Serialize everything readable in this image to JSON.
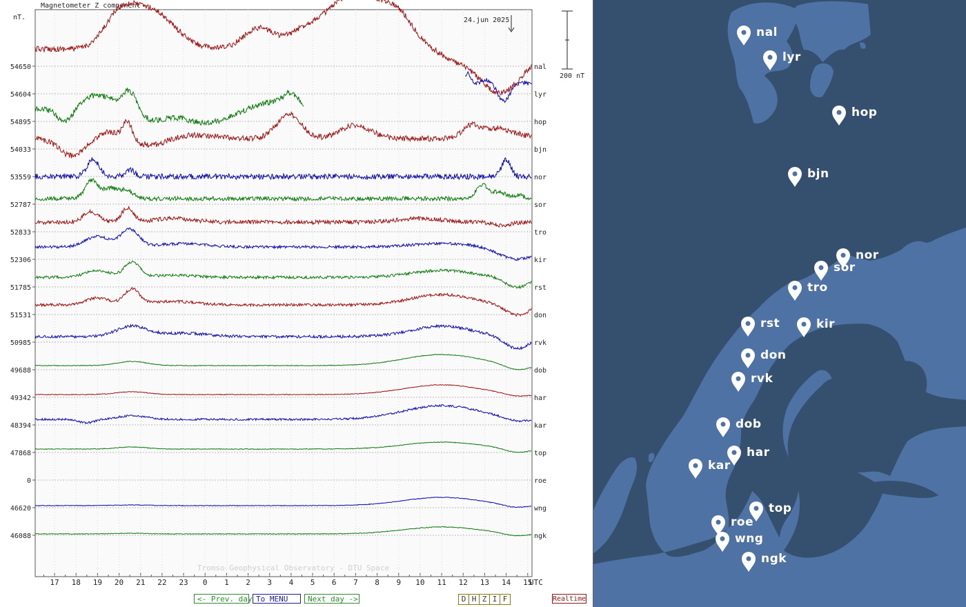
{
  "chart_data": {
    "type": "line",
    "title": "Magnetometer Z component",
    "unit": "nT.",
    "date": "24.jun 2025",
    "scale_label": "200 nT",
    "x_ticks": [
      "17",
      "18",
      "19",
      "20",
      "21",
      "22",
      "23",
      "0",
      "1",
      "2",
      "3",
      "4",
      "5",
      "6",
      "7",
      "8",
      "9",
      "10",
      "11",
      "12",
      "13",
      "14",
      "15"
    ],
    "x_unit": "UTC",
    "watermark": "Tromso Geophysical Observatory - DTU Space",
    "series": [
      {
        "name": "nal",
        "baseline": "54650",
        "color": "#a01010"
      },
      {
        "name": "lyr",
        "baseline": "54604",
        "color": "#0a0ab0"
      },
      {
        "name": "hop",
        "baseline": "54895",
        "color": "#0a7a0a"
      },
      {
        "name": "bjn",
        "baseline": "54033",
        "color": "#a01010"
      },
      {
        "name": "nor",
        "baseline": "53559",
        "color": "#0a0ab0"
      },
      {
        "name": "sor",
        "baseline": "52787",
        "color": "#0a7a0a"
      },
      {
        "name": "tro",
        "baseline": "52833",
        "color": "#a01010"
      },
      {
        "name": "kir",
        "baseline": "52306",
        "color": "#0a0ab0"
      },
      {
        "name": "rst",
        "baseline": "51785",
        "color": "#0a7a0a"
      },
      {
        "name": "don",
        "baseline": "51531",
        "color": "#a01010"
      },
      {
        "name": "rvk",
        "baseline": "50985",
        "color": "#0a0ab0"
      },
      {
        "name": "dob",
        "baseline": "49688",
        "color": "#0a7a0a"
      },
      {
        "name": "har",
        "baseline": "49342",
        "color": "#a01010"
      },
      {
        "name": "kar",
        "baseline": "48394",
        "color": "#0a0ab0"
      },
      {
        "name": "top",
        "baseline": "47868",
        "color": "#0a7a0a"
      },
      {
        "name": "roe",
        "baseline": "0",
        "color": "#a01010"
      },
      {
        "name": "wng",
        "baseline": "46620",
        "color": "#0a0ab0"
      },
      {
        "name": "ngk",
        "baseline": "46088",
        "color": "#0a7a0a"
      }
    ]
  },
  "nav": {
    "prev": "<- Prev. day",
    "menu": "To MENU",
    "next": "Next day ->",
    "components": [
      "D",
      "H",
      "Z",
      "I",
      "F"
    ],
    "realtime": "Realtime"
  },
  "map": {
    "background": "#35506f",
    "land": "#4e72a3",
    "stations": [
      "nal",
      "lyr",
      "hop",
      "bjn",
      "nor",
      "sor",
      "tro",
      "rst",
      "kir",
      "don",
      "rvk",
      "dob",
      "har",
      "kar",
      "top",
      "roe",
      "wng",
      "ngk"
    ]
  }
}
